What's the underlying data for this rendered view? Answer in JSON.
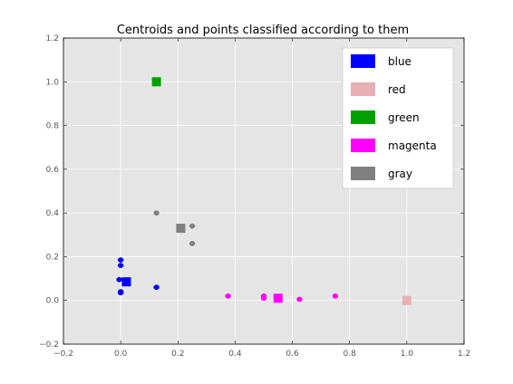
{
  "chart_data": {
    "type": "scatter",
    "title": "Centroids and points classified according to them",
    "xlabel": "",
    "ylabel": "",
    "xlim": [
      -0.2,
      1.2
    ],
    "ylim": [
      -0.2,
      1.2
    ],
    "x_ticks": [
      "−0.2",
      "0.0",
      "0.2",
      "0.4",
      "0.6",
      "0.8",
      "1.0",
      "1.2"
    ],
    "y_ticks": [
      "−0.2",
      "0.0",
      "0.2",
      "0.4",
      "0.6",
      "0.8",
      "1.0",
      "1.2"
    ],
    "x_tick_values": [
      -0.2,
      0.0,
      0.2,
      0.4,
      0.6,
      0.8,
      1.0,
      1.2
    ],
    "y_tick_values": [
      -0.2,
      0.0,
      0.2,
      0.4,
      0.6,
      0.8,
      1.0,
      1.2
    ],
    "grid": true,
    "background": "#e5e5e5",
    "legend_position": "top-right",
    "series": [
      {
        "name": "blue",
        "color": "#0000ff",
        "centroid": [
          0.02,
          0.085
        ],
        "points": [
          [
            0.0,
            0.185
          ],
          [
            0.0,
            0.16
          ],
          [
            -0.005,
            0.095
          ],
          [
            0.0,
            0.04
          ],
          [
            0.0,
            0.035
          ],
          [
            0.125,
            0.06
          ]
        ]
      },
      {
        "name": "red",
        "color": "#e8b0b4",
        "centroid": [
          1.0,
          0.0
        ],
        "points": []
      },
      {
        "name": "green",
        "color": "#00a000",
        "centroid": [
          0.125,
          1.0
        ],
        "points": []
      },
      {
        "name": "magenta",
        "color": "#ff00ff",
        "centroid": [
          0.55,
          0.01
        ],
        "points": [
          [
            0.375,
            0.02
          ],
          [
            0.5,
            0.02
          ],
          [
            0.5,
            0.01
          ],
          [
            0.625,
            0.005
          ],
          [
            0.75,
            0.02
          ]
        ]
      },
      {
        "name": "gray",
        "color": "#808080",
        "centroid": [
          0.21,
          0.33
        ],
        "points": [
          [
            0.125,
            0.4
          ],
          [
            0.25,
            0.34
          ],
          [
            0.25,
            0.26
          ]
        ]
      }
    ]
  }
}
